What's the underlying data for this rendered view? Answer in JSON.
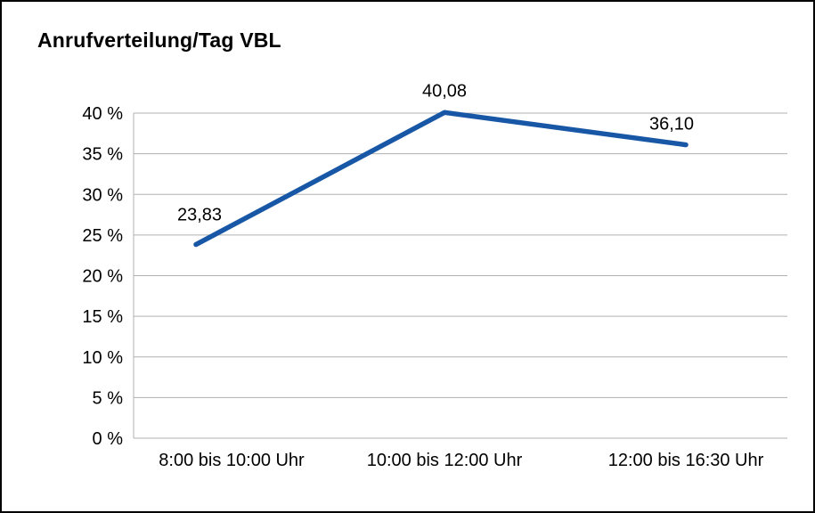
{
  "page": {
    "background_color": "#ffffff",
    "border_color": "#000000"
  },
  "chart": {
    "title": "Anrufverteilung/Tag VBL",
    "line_color": "#1857a6",
    "grid_color": "#b0b0b0",
    "text_color": "#000000"
  },
  "chart_data": {
    "type": "line",
    "title": "Anrufverteilung/Tag VBL",
    "categories": [
      "8:00 bis 10:00 Uhr",
      "10:00 bis 12:00 Uhr",
      "12:00 bis 16:30 Uhr"
    ],
    "values": [
      23.83,
      40.08,
      36.1
    ],
    "value_labels": [
      "23,83",
      "40,08",
      "36,10"
    ],
    "xlabel": "",
    "ylabel": "",
    "ylim": [
      0,
      40
    ],
    "ytick_step": 5,
    "ytick_labels": [
      "0 %",
      "5 %",
      "10 %",
      "15 %",
      "20 %",
      "25 %",
      "30 %",
      "35 %",
      "40 %"
    ],
    "grid": true,
    "legend": false
  }
}
